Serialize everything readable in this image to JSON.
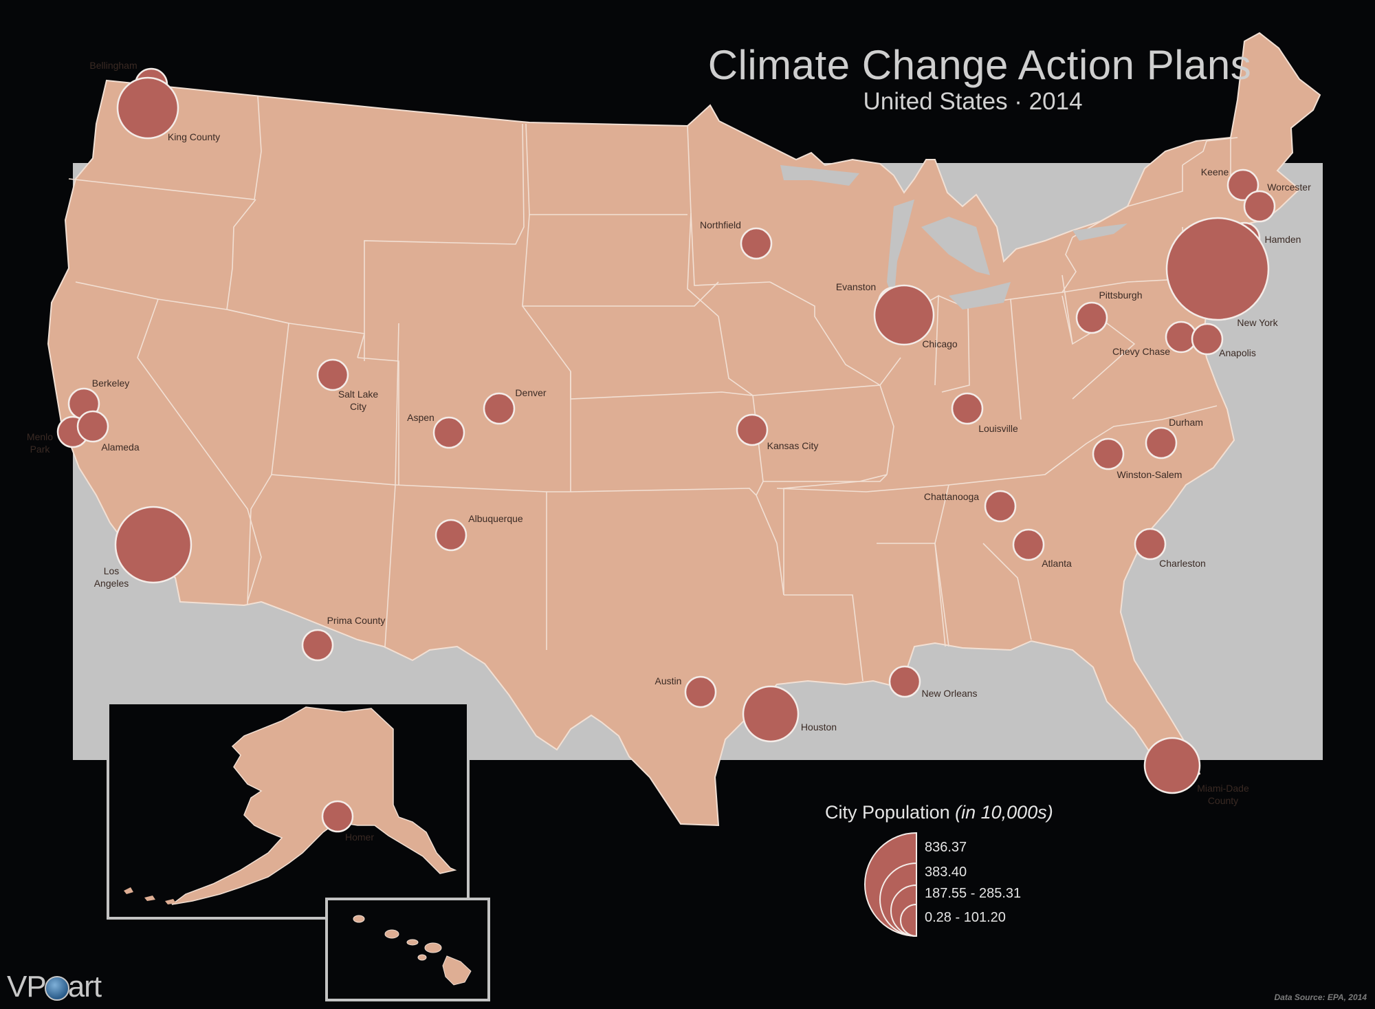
{
  "header": {
    "title": "Climate Change Action Plans",
    "subtitle": "United States · 2014"
  },
  "colors": {
    "background": "#050608",
    "map_frame": "#c3c3c3",
    "land": "#deae94",
    "borders": "#f2e0d4",
    "bubble": "#b4615a",
    "bubble_stroke": "#f4ece8"
  },
  "cities": [
    {
      "name": "Bellingham",
      "population_band": "0.28 - 101.20"
    },
    {
      "name": "King County",
      "population_band": "187.55 - 285.31"
    },
    {
      "name": "Northfield",
      "population_band": "0.28 - 101.20"
    },
    {
      "name": "Evanston",
      "population_band": "0.28 - 101.20"
    },
    {
      "name": "Chicago",
      "population_band": "187.55 - 285.31"
    },
    {
      "name": "Keene",
      "population_band": "0.28 - 101.20"
    },
    {
      "name": "Worcester",
      "population_band": "0.28 - 101.20"
    },
    {
      "name": "Hamden",
      "population_band": "0.28 - 101.20"
    },
    {
      "name": "New York",
      "population_band": "836.37"
    },
    {
      "name": "Pittsburgh",
      "population_band": "0.28 - 101.20"
    },
    {
      "name": "Chevy Chase",
      "population_band": "0.28 - 101.20"
    },
    {
      "name": "Anapolis",
      "population_band": "0.28 - 101.20"
    },
    {
      "name": "Salt Lake City",
      "population_band": "0.28 - 101.20"
    },
    {
      "name": "Denver",
      "population_band": "0.28 - 101.20"
    },
    {
      "name": "Aspen",
      "population_band": "0.28 - 101.20"
    },
    {
      "name": "Kansas City",
      "population_band": "0.28 - 101.20"
    },
    {
      "name": "Louisville",
      "population_band": "0.28 - 101.20"
    },
    {
      "name": "Durham",
      "population_band": "0.28 - 101.20"
    },
    {
      "name": "Winston-Salem",
      "population_band": "0.28 - 101.20"
    },
    {
      "name": "Berkeley",
      "population_band": "0.28 - 101.20"
    },
    {
      "name": "Menlo Park",
      "population_band": "0.28 - 101.20"
    },
    {
      "name": "Alameda",
      "population_band": "0.28 - 101.20"
    },
    {
      "name": "Los Angeles",
      "population_band": "383.40"
    },
    {
      "name": "Albuquerque",
      "population_band": "0.28 - 101.20"
    },
    {
      "name": "Chattanooga",
      "population_band": "0.28 - 101.20"
    },
    {
      "name": "Atlanta",
      "population_band": "0.28 - 101.20"
    },
    {
      "name": "Charleston",
      "population_band": "0.28 - 101.20"
    },
    {
      "name": "Prima County",
      "population_band": "0.28 - 101.20"
    },
    {
      "name": "Austin",
      "population_band": "0.28 - 101.20"
    },
    {
      "name": "Houston",
      "population_band": "187.55 - 285.31"
    },
    {
      "name": "New Orleans",
      "population_band": "0.28 - 101.20"
    },
    {
      "name": "Miami-Dade County",
      "population_band": "187.55 - 285.31"
    },
    {
      "name": "Homer",
      "population_band": "0.28 - 101.20"
    }
  ],
  "legend": {
    "title": "City Population",
    "title_units": "(in 10,000s)",
    "classes": [
      "836.37",
      "383.40",
      "187.55 - 285.31",
      "0.28 - 101.20"
    ]
  },
  "footer": {
    "source": "Data Source: EPA, 2014",
    "brand_left": "VP",
    "brand_right": "art"
  }
}
